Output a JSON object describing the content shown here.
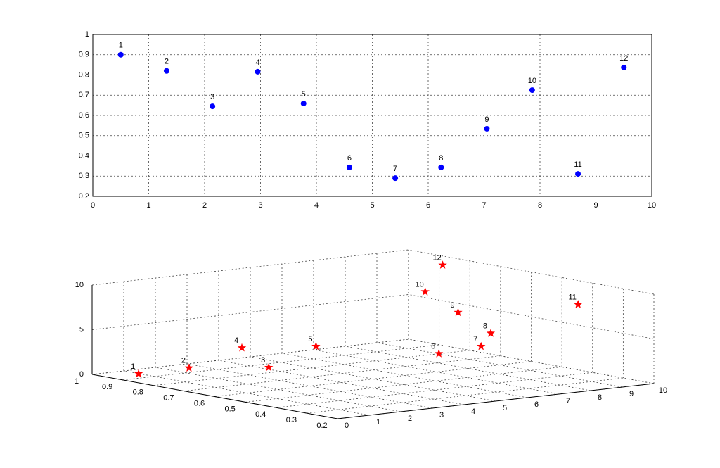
{
  "chart_data": [
    {
      "type": "scatter",
      "x": [
        0.5,
        1.32,
        2.14,
        2.95,
        3.77,
        4.59,
        5.41,
        6.23,
        7.05,
        7.86,
        8.68,
        9.5
      ],
      "values": [
        0.9,
        0.82,
        0.645,
        0.816,
        0.659,
        0.343,
        0.29,
        0.343,
        0.534,
        0.725,
        0.311,
        0.837
      ],
      "point_labels": [
        "1",
        "2",
        "3",
        "4",
        "5",
        "6",
        "7",
        "8",
        "9",
        "10",
        "11",
        "12"
      ],
      "color": "#0000ff",
      "xlim": [
        0,
        10
      ],
      "xticks": [
        0,
        1,
        2,
        3,
        4,
        5,
        6,
        7,
        8,
        9,
        10
      ],
      "ylim": [
        0.2,
        1
      ],
      "yticks": [
        0.2,
        0.3,
        0.4,
        0.5,
        0.6,
        0.7,
        0.8,
        0.9,
        1
      ],
      "grid": true
    },
    {
      "type": "scatter3d",
      "x": [
        0.9,
        0.82,
        0.645,
        0.816,
        0.659,
        0.343,
        0.29,
        0.343,
        0.534,
        0.725,
        0.311,
        0.837
      ],
      "y": [
        0.5,
        1.32,
        2.14,
        2.95,
        3.77,
        4.59,
        5.41,
        6.23,
        7.05,
        7.86,
        8.68,
        9.5
      ],
      "z": [
        0.5,
        1.32,
        2.14,
        2.95,
        3.77,
        4.59,
        5.41,
        6.23,
        7.05,
        7.86,
        8.68,
        9.5
      ],
      "point_labels": [
        "1",
        "2",
        "3",
        "4",
        "5",
        "6",
        "7",
        "8",
        "9",
        "10",
        "11",
        "12"
      ],
      "color": "#ff0000",
      "xlim": [
        0.2,
        1
      ],
      "xticks": [
        0.2,
        0.3,
        0.4,
        0.5,
        0.6,
        0.7,
        0.8,
        0.9,
        1
      ],
      "ylim": [
        0,
        10
      ],
      "yticks": [
        0,
        1,
        2,
        3,
        4,
        5,
        6,
        7,
        8,
        9,
        10
      ],
      "zlim": [
        0,
        10
      ],
      "zticks": [
        0,
        5,
        10
      ],
      "grid": true
    }
  ]
}
